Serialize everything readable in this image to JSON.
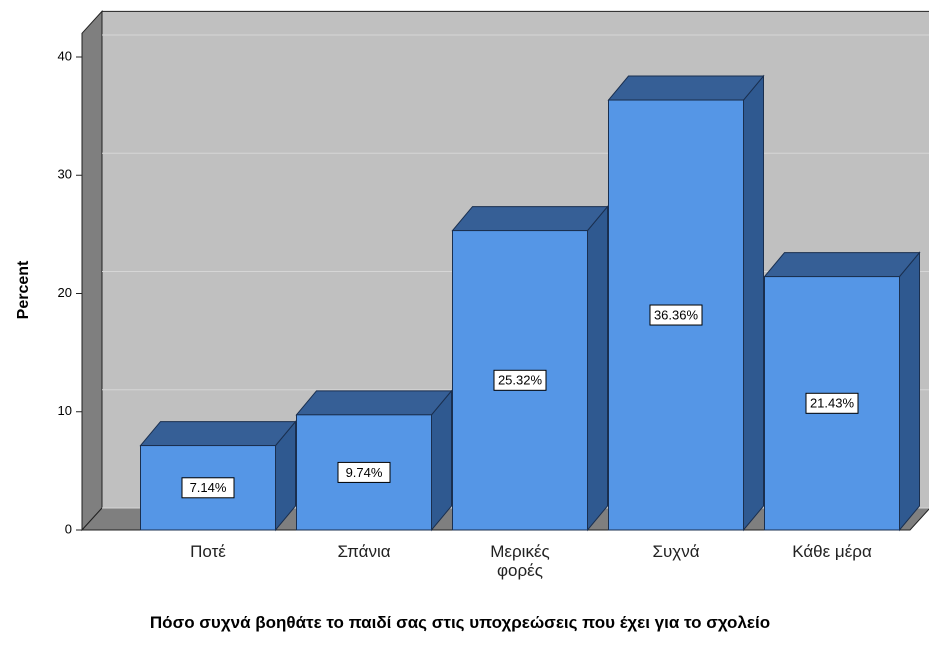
{
  "chart_data": {
    "type": "bar3d",
    "categories": [
      "Ποτέ",
      "Σπάνια",
      "Μερικές φορές",
      "Συχνά",
      "Κάθε μέρα"
    ],
    "values": [
      7.14,
      9.74,
      25.32,
      36.36,
      21.43
    ],
    "value_labels": [
      "7.14%",
      "9.74%",
      "25.32%",
      "36.36%",
      "21.43%"
    ],
    "color": "#5596e6",
    "ylabel": "Percent",
    "xlabel": "Πόσο συχνά βοηθάτε το παιδί σας στις υποχρεώσεις που έχει για το σχολείο",
    "ylim": [
      0,
      42
    ],
    "yticks": [
      0,
      10,
      20,
      30,
      40
    ],
    "grid": true
  }
}
